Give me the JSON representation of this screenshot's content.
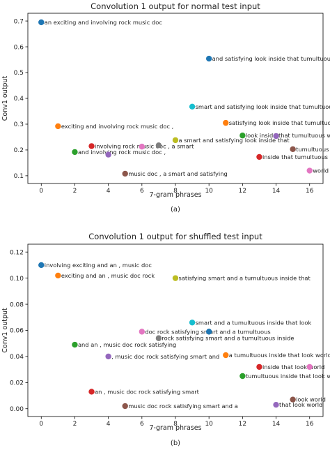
{
  "chart_data": [
    {
      "type": "scatter",
      "title": "Convolution 1 output for normal test input",
      "xlabel": "7-gram phrases",
      "ylabel": "Conv1 output",
      "xlim": [
        -0.8,
        16.8
      ],
      "ylim": [
        0.07,
        0.73
      ],
      "xticks": [
        0,
        2,
        4,
        6,
        8,
        10,
        12,
        14,
        16
      ],
      "yticks": [
        0.1,
        0.2,
        0.3,
        0.4,
        0.5,
        0.6,
        0.7
      ],
      "ytick_labels": [
        "0.1",
        "0.2",
        "0.3",
        "0.4",
        "0.5",
        "0.6",
        "0.7"
      ],
      "grid": false,
      "caption": "(a)",
      "points": [
        {
          "x": 0,
          "y": 0.695,
          "label": "an exciting and involving rock music doc",
          "color": "#1f77b4"
        },
        {
          "x": 1,
          "y": 0.292,
          "label": "exciting and involving rock music doc ,",
          "color": "#ff7f0e"
        },
        {
          "x": 2,
          "y": 0.192,
          "label": "and involving rock music doc ,",
          "color": "#2ca02c"
        },
        {
          "x": 3,
          "y": 0.215,
          "label": "involving rock music doc , a smart",
          "color": "#d62728"
        },
        {
          "x": 4,
          "y": 0.182,
          "label": "",
          "color": "#9467bd"
        },
        {
          "x": 5,
          "y": 0.108,
          "label": "music doc , a smart and satisfying",
          "color": "#8c564b"
        },
        {
          "x": 6,
          "y": 0.213,
          "label": "",
          "color": "#e377c2"
        },
        {
          "x": 7,
          "y": 0.218,
          "label": "",
          "color": "#7f7f7f"
        },
        {
          "x": 8,
          "y": 0.238,
          "label": "a smart and satisfying look inside that",
          "color": "#bcbd22"
        },
        {
          "x": 9,
          "y": 0.368,
          "label": "smart and satisfying look inside that tumultuous",
          "color": "#17becf"
        },
        {
          "x": 10,
          "y": 0.554,
          "label": "and satisfying look inside that tumultuous world",
          "color": "#1f77b4"
        },
        {
          "x": 11,
          "y": 0.305,
          "label": "satisfying look inside that tumultuous world",
          "color": "#ff7f0e"
        },
        {
          "x": 12,
          "y": 0.256,
          "label": "look inside that tumultuous world",
          "color": "#2ca02c"
        },
        {
          "x": 13,
          "y": 0.173,
          "label": "inside that tumultuous world",
          "color": "#d62728"
        },
        {
          "x": 14,
          "y": 0.254,
          "label": "",
          "color": "#9467bd"
        },
        {
          "x": 15,
          "y": 0.203,
          "label": "tumultuous world",
          "color": "#8c564b"
        },
        {
          "x": 16,
          "y": 0.12,
          "label": "world",
          "color": "#e377c2"
        }
      ]
    },
    {
      "type": "scatter",
      "title": "Convolution 1 output for shuffled test input",
      "xlabel": "7-gram phrases",
      "ylabel": "Conv1 output",
      "xlim": [
        -0.8,
        16.8
      ],
      "ylim": [
        -0.006,
        0.126
      ],
      "xticks": [
        0,
        2,
        4,
        6,
        8,
        10,
        12,
        14,
        16
      ],
      "yticks": [
        0.0,
        0.02,
        0.04,
        0.06,
        0.08,
        0.1,
        0.12
      ],
      "ytick_labels": [
        "0.00",
        "0.02",
        "0.04",
        "0.06",
        "0.08",
        "0.10",
        "0.12"
      ],
      "grid": false,
      "caption": "(b)",
      "points": [
        {
          "x": 0,
          "y": 0.11,
          "label": "involving exciting and an , music doc",
          "color": "#1f77b4"
        },
        {
          "x": 1,
          "y": 0.102,
          "label": "exciting and an , music doc rock",
          "color": "#ff7f0e"
        },
        {
          "x": 2,
          "y": 0.049,
          "label": "and an , music doc rock satisfying",
          "color": "#2ca02c"
        },
        {
          "x": 3,
          "y": 0.013,
          "label": "an , music doc rock satisfying smart",
          "color": "#d62728"
        },
        {
          "x": 4,
          "y": 0.04,
          "label": ", music doc rock satisfying smart and",
          "color": "#9467bd"
        },
        {
          "x": 5,
          "y": 0.002,
          "label": "music doc rock satisfying smart and a",
          "color": "#8c564b"
        },
        {
          "x": 6,
          "y": 0.059,
          "label": "doc rock satisfying smart and a tumultuous",
          "color": "#e377c2"
        },
        {
          "x": 7,
          "y": 0.054,
          "label": "rock satisfying smart and a tumultuous inside",
          "color": "#7f7f7f"
        },
        {
          "x": 8,
          "y": 0.1,
          "label": "satisfying smart and a tumultuous inside that",
          "color": "#bcbd22"
        },
        {
          "x": 9,
          "y": 0.066,
          "label": "smart and a tumultuous inside that look",
          "color": "#17becf"
        },
        {
          "x": 10,
          "y": 0.059,
          "label": "",
          "color": "#1f77b4"
        },
        {
          "x": 11,
          "y": 0.041,
          "label": "a tumultuous inside that look world",
          "color": "#ff7f0e"
        },
        {
          "x": 12,
          "y": 0.025,
          "label": "tumultuous inside that look world",
          "color": "#2ca02c"
        },
        {
          "x": 13,
          "y": 0.032,
          "label": "inside that look world",
          "color": "#d62728"
        },
        {
          "x": 14,
          "y": 0.003,
          "label": "that look world",
          "color": "#9467bd"
        },
        {
          "x": 15,
          "y": 0.007,
          "label": "look world",
          "color": "#8c564b"
        },
        {
          "x": 16,
          "y": 0.032,
          "label": "",
          "color": "#e377c2"
        }
      ]
    }
  ]
}
